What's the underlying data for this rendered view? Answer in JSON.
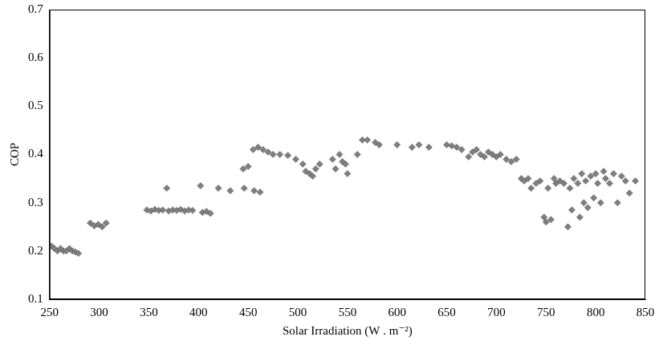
{
  "chart_data": {
    "type": "scatter",
    "x_label": "Solar Irradiation (W . m⁻²)",
    "y_label": "COP",
    "x": [
      252,
      255,
      258,
      261,
      264,
      267,
      270,
      273,
      276,
      279,
      291,
      295,
      299,
      303,
      307,
      348,
      352,
      356,
      360,
      364,
      368,
      370,
      374,
      378,
      382,
      386,
      390,
      394,
      402,
      404,
      408,
      412,
      420,
      432,
      445,
      446,
      450,
      455,
      456,
      460,
      462,
      465,
      470,
      475,
      482,
      490,
      498,
      505,
      508,
      512,
      515,
      518,
      522,
      535,
      538,
      542,
      545,
      548,
      550,
      560,
      565,
      570,
      578,
      582,
      600,
      615,
      622,
      632,
      650,
      655,
      660,
      665,
      672,
      676,
      680,
      684,
      688,
      692,
      696,
      700,
      704,
      710,
      715,
      720,
      725,
      728,
      732,
      735,
      740,
      744,
      748,
      750,
      752,
      755,
      758,
      760,
      764,
      768,
      772,
      774,
      776,
      778,
      782,
      784,
      786,
      788,
      790,
      792,
      795,
      798,
      800,
      802,
      805,
      808,
      810,
      814,
      818,
      822,
      826,
      830,
      834,
      840
    ],
    "values": [
      0.21,
      0.205,
      0.2,
      0.205,
      0.2,
      0.2,
      0.205,
      0.2,
      0.198,
      0.195,
      0.258,
      0.252,
      0.255,
      0.25,
      0.258,
      0.285,
      0.283,
      0.286,
      0.284,
      0.285,
      0.33,
      0.283,
      0.285,
      0.284,
      0.286,
      0.283,
      0.285,
      0.284,
      0.335,
      0.28,
      0.282,
      0.278,
      0.33,
      0.325,
      0.37,
      0.33,
      0.375,
      0.41,
      0.325,
      0.415,
      0.322,
      0.41,
      0.405,
      0.4,
      0.4,
      0.398,
      0.39,
      0.38,
      0.365,
      0.36,
      0.355,
      0.37,
      0.38,
      0.39,
      0.37,
      0.4,
      0.385,
      0.38,
      0.36,
      0.4,
      0.43,
      0.43,
      0.425,
      0.42,
      0.42,
      0.415,
      0.42,
      0.415,
      0.42,
      0.418,
      0.415,
      0.41,
      0.395,
      0.405,
      0.41,
      0.4,
      0.395,
      0.405,
      0.4,
      0.395,
      0.4,
      0.39,
      0.385,
      0.39,
      0.35,
      0.345,
      0.35,
      0.33,
      0.34,
      0.345,
      0.27,
      0.26,
      0.33,
      0.265,
      0.35,
      0.34,
      0.345,
      0.34,
      0.25,
      0.33,
      0.285,
      0.35,
      0.34,
      0.27,
      0.36,
      0.3,
      0.345,
      0.29,
      0.355,
      0.31,
      0.36,
      0.34,
      0.3,
      0.365,
      0.35,
      0.34,
      0.36,
      0.3,
      0.355,
      0.345,
      0.32,
      0.345
    ],
    "color": "#7f7f7f",
    "marker": "diamond",
    "xlim": [
      250,
      850
    ],
    "xticks": [
      250,
      300,
      350,
      400,
      450,
      500,
      550,
      600,
      650,
      700,
      750,
      800,
      850
    ],
    "ylim": [
      0.1,
      0.7
    ],
    "yticks": [
      0.1,
      0.2,
      0.3,
      0.4,
      0.5,
      0.6,
      0.7
    ],
    "grid": false
  }
}
